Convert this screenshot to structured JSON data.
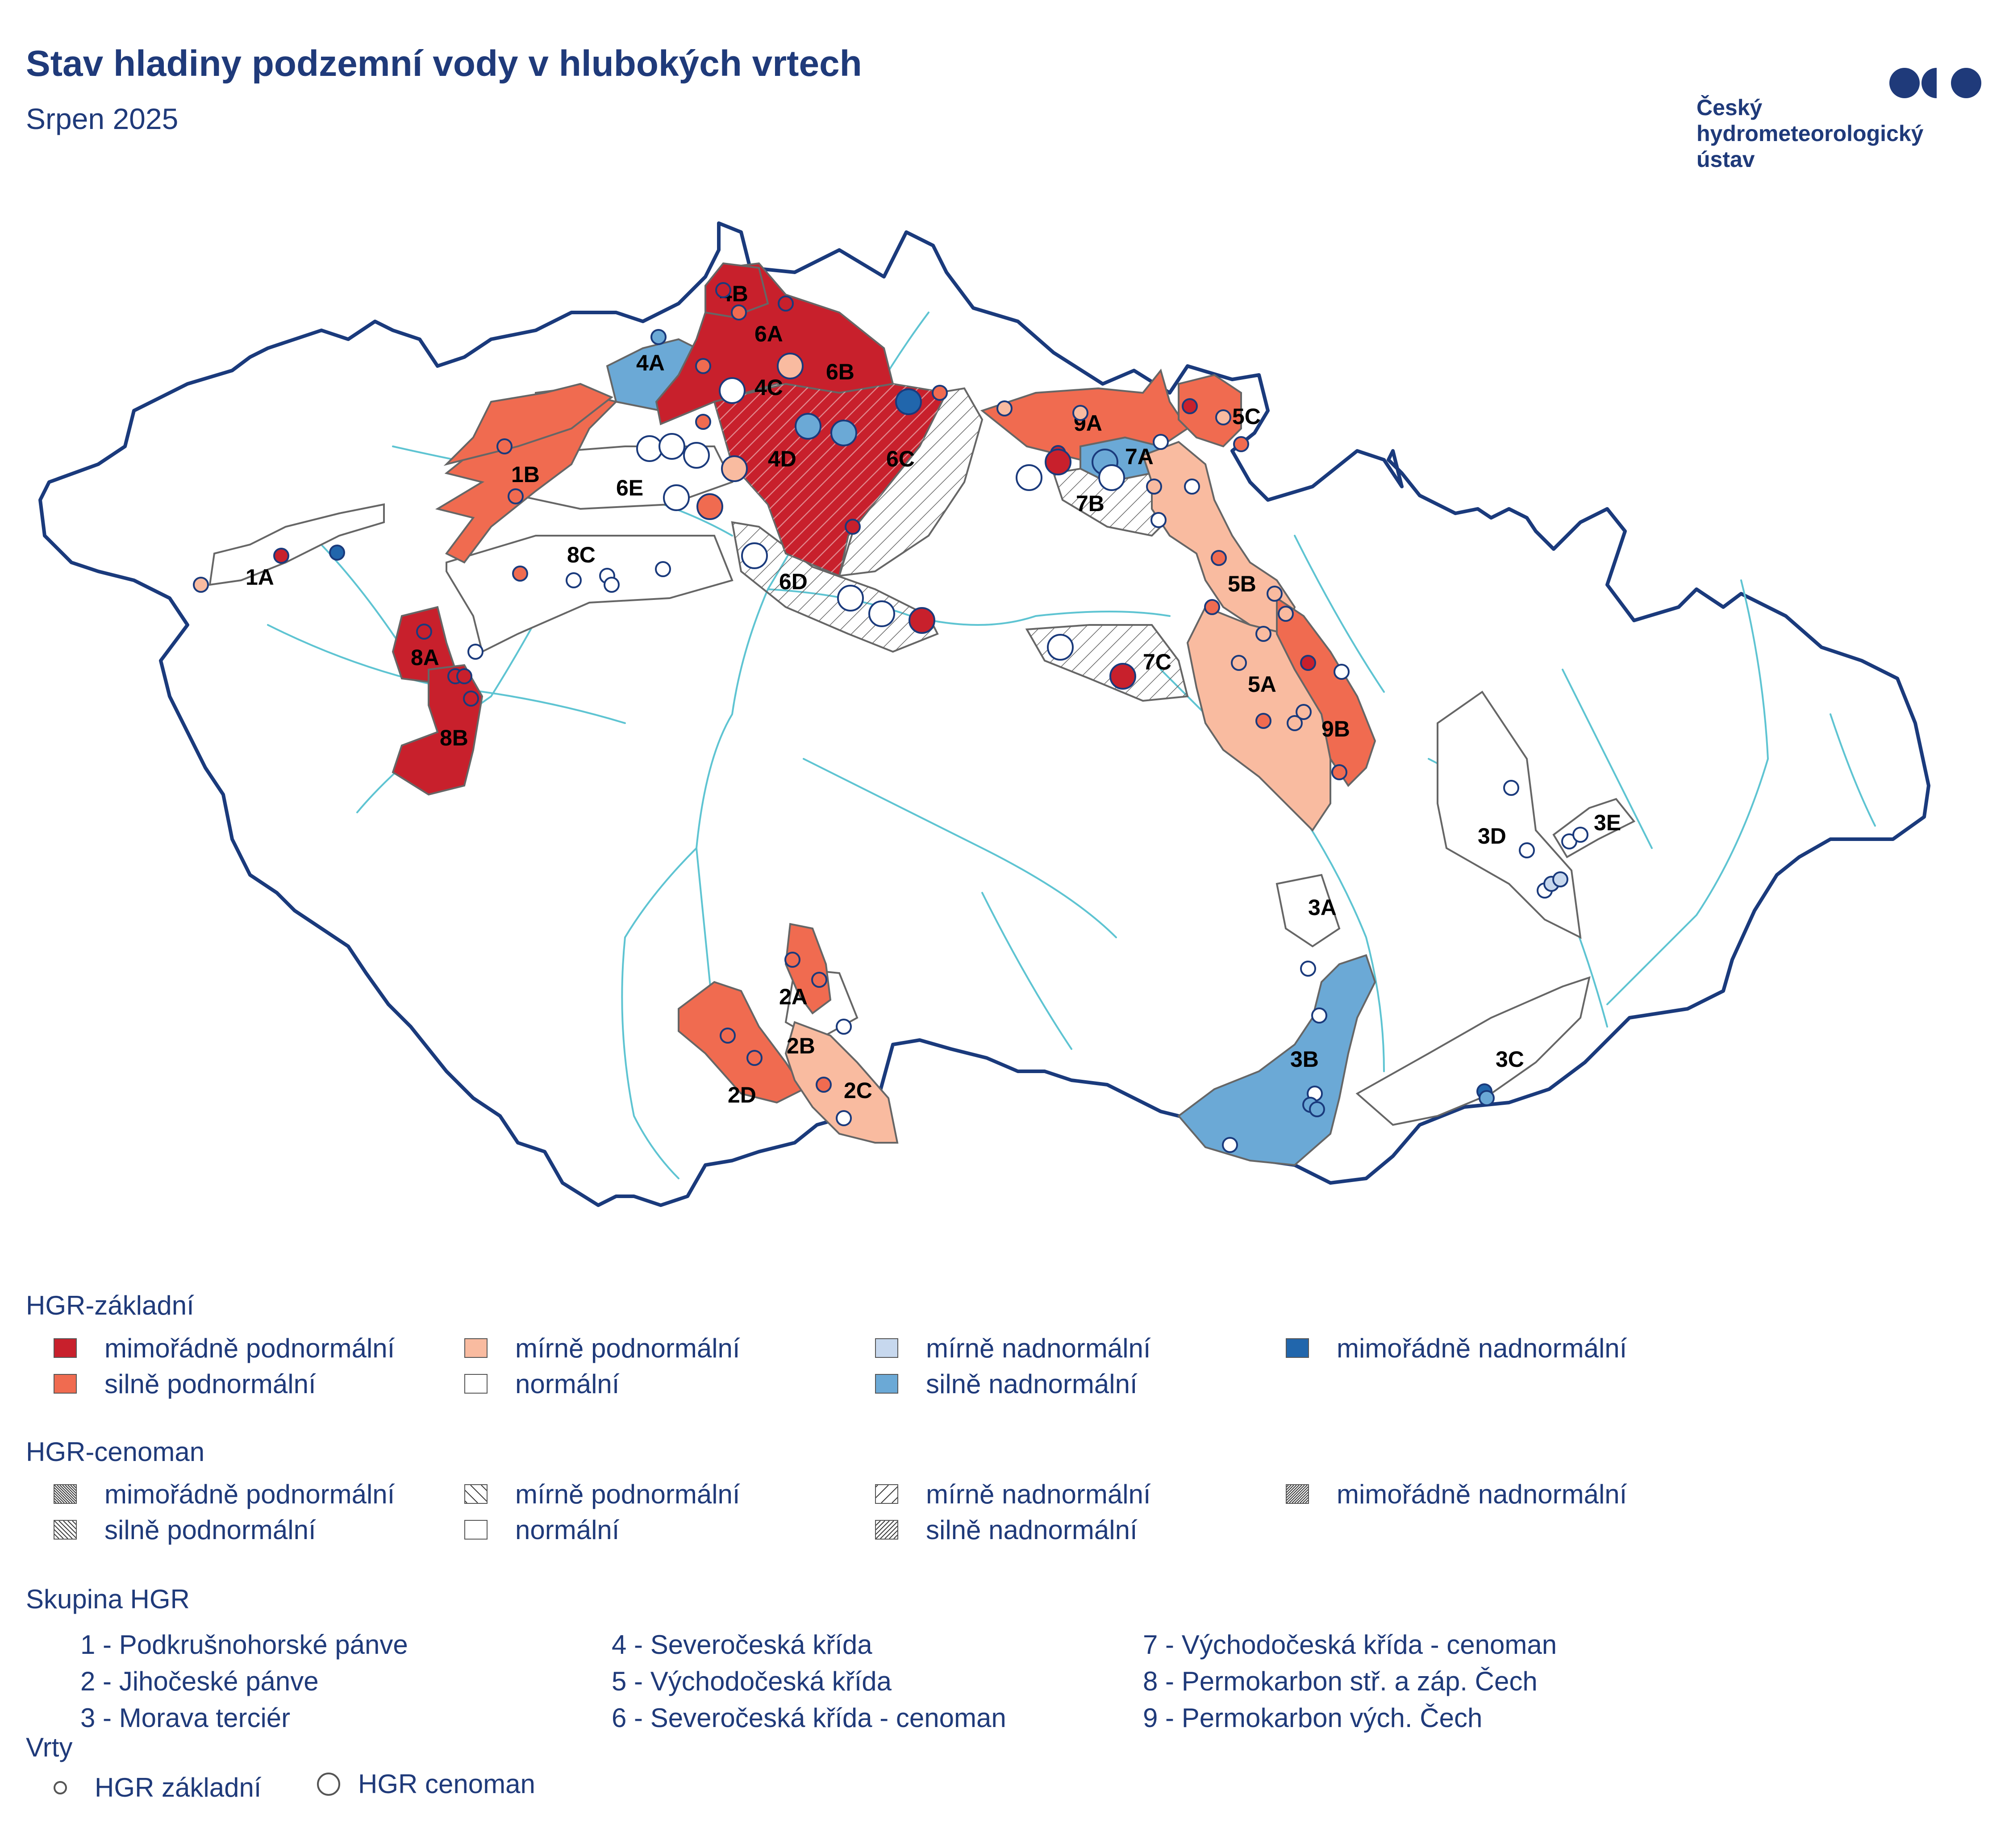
{
  "header": {
    "title": "Stav hladiny podzemní vody v hlubokých vrtech",
    "subtitle": "Srpen 2025"
  },
  "logo": {
    "lines": [
      "Český",
      "hydrometeorologický",
      "ústav"
    ],
    "icon": "chmu-dots-icon"
  },
  "colors": {
    "extreme_below": "#c8202c",
    "strong_below": "#f06b50",
    "mild_below": "#f9bba0",
    "normal": "#ffffff",
    "mild_above": "#c7d8ee",
    "strong_above": "#6ba9d6",
    "extreme_above": "#2166ac",
    "border": "#1a3a7c",
    "rivers": "#5ec4d2"
  },
  "map": {
    "regions": [
      {
        "label": "1A",
        "status": "normal",
        "hatch": false
      },
      {
        "label": "1B",
        "status": "strong_below",
        "hatch": false
      },
      {
        "label": "2A",
        "status": "strong_below",
        "hatch": false
      },
      {
        "label": "2B",
        "status": "normal",
        "hatch": false
      },
      {
        "label": "2C",
        "status": "mild_below",
        "hatch": false
      },
      {
        "label": "2D",
        "status": "strong_below",
        "hatch": false
      },
      {
        "label": "3A",
        "status": "normal",
        "hatch": false
      },
      {
        "label": "3B",
        "status": "strong_above",
        "hatch": false
      },
      {
        "label": "3C",
        "status": "normal",
        "hatch": false
      },
      {
        "label": "3D",
        "status": "normal",
        "hatch": false
      },
      {
        "label": "3E",
        "status": "normal",
        "hatch": false
      },
      {
        "label": "4A",
        "status": "strong_above",
        "hatch": false
      },
      {
        "label": "4B",
        "status": "extreme_below",
        "hatch": false
      },
      {
        "label": "4C",
        "status": "extreme_below",
        "hatch": false
      },
      {
        "label": "4D",
        "status": "extreme_below",
        "hatch": true
      },
      {
        "label": "5A",
        "status": "mild_below",
        "hatch": false
      },
      {
        "label": "5B",
        "status": "mild_below",
        "hatch": false
      },
      {
        "label": "5C",
        "status": "strong_below",
        "hatch": false
      },
      {
        "label": "6A",
        "status": "extreme_below",
        "hatch": false
      },
      {
        "label": "6B",
        "status": "extreme_below",
        "hatch": true
      },
      {
        "label": "6C",
        "status": "normal",
        "hatch": true
      },
      {
        "label": "6D",
        "status": "normal",
        "hatch": true
      },
      {
        "label": "6E",
        "status": "normal",
        "hatch": false
      },
      {
        "label": "7A",
        "status": "strong_above",
        "hatch": false
      },
      {
        "label": "7B",
        "status": "normal",
        "hatch": true
      },
      {
        "label": "7C",
        "status": "normal",
        "hatch": true
      },
      {
        "label": "8A",
        "status": "extreme_below",
        "hatch": false
      },
      {
        "label": "8B",
        "status": "extreme_below",
        "hatch": false
      },
      {
        "label": "8C",
        "status": "normal",
        "hatch": false
      },
      {
        "label": "9A",
        "status": "strong_below",
        "hatch": false
      },
      {
        "label": "9B",
        "status": "strong_below",
        "hatch": false
      }
    ]
  },
  "legend": {
    "basic": {
      "heading": "HGR-základní",
      "items": [
        {
          "label": "mimořádně podnormální",
          "color": "#c8202c"
        },
        {
          "label": "silně podnormální",
          "color": "#f06b50"
        },
        {
          "label": "mírně podnormální",
          "color": "#f9bba0"
        },
        {
          "label": "normální",
          "color": "#ffffff"
        },
        {
          "label": "mírně nadnormální",
          "color": "#c7d8ee"
        },
        {
          "label": "silně nadnormální",
          "color": "#6ba9d6"
        },
        {
          "label": "mimořádně nadnormální",
          "color": "#2166ac"
        }
      ]
    },
    "cenoman": {
      "heading": "HGR-cenoman",
      "items": [
        {
          "label": "mimořádně podnormální",
          "pattern": "dense-back"
        },
        {
          "label": "silně podnormální",
          "pattern": "medium-back"
        },
        {
          "label": "mírně podnormální",
          "pattern": "sparse-back"
        },
        {
          "label": "normální",
          "pattern": "none"
        },
        {
          "label": "mírně nadnormální",
          "pattern": "sparse-fwd"
        },
        {
          "label": "silně nadnormální",
          "pattern": "medium-fwd"
        },
        {
          "label": "mimořádně nadnormální",
          "pattern": "dense-fwd"
        }
      ]
    },
    "groups": {
      "heading": "Skupina HGR",
      "items": [
        "1 - Podkrušnohorské pánve",
        "2 - Jihočeské pánve",
        "3 - Morava terciér",
        "4 - Severočeská křída",
        "5 - Východočeská křída",
        "6 - Severočeská křída - cenoman",
        "7 - Východočeská křída - cenoman",
        "8 - Permokarbon stř. a záp. Čech",
        "9 - Permokarbon vých. Čech"
      ]
    },
    "wells": {
      "heading": "Vrty",
      "items": [
        "HGR základní",
        "HGR cenoman"
      ]
    }
  }
}
